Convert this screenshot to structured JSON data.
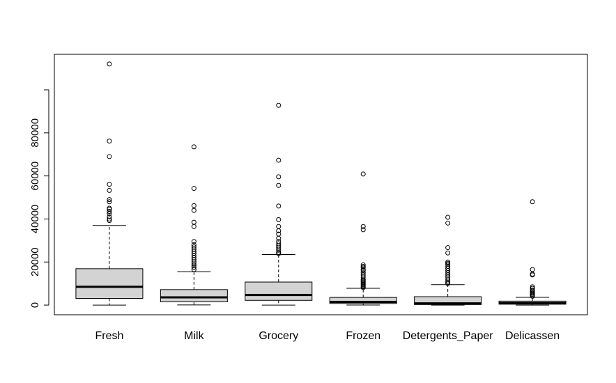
{
  "chart_data": {
    "type": "boxplot",
    "title": "",
    "xlabel": "",
    "ylabel": "",
    "ylim": [
      -4500,
      116500
    ],
    "yticks": [
      0,
      20000,
      40000,
      60000,
      80000,
      100000
    ],
    "ytick_labels": [
      "0",
      "20000",
      "40000",
      "60000",
      "80000",
      ""
    ],
    "box_fill": "#d3d3d3",
    "categories": [
      "Fresh",
      "Milk",
      "Grocery",
      "Frozen",
      "Detergents_Paper",
      "Delicassen"
    ],
    "boxes": [
      {
        "name": "Fresh",
        "min": 3,
        "q1": 3100,
        "median": 8500,
        "q3": 16900,
        "whisker_high": 37000,
        "outliers": [
          112000,
          76200,
          69000,
          56100,
          53300,
          49000,
          48000,
          45000,
          44500,
          43500,
          42500,
          41000,
          40000,
          39300
        ]
      },
      {
        "name": "Milk",
        "min": 55,
        "q1": 1500,
        "median": 3600,
        "q3": 7200,
        "whisker_high": 15500,
        "outliers": [
          73500,
          54200,
          46200,
          44000,
          38500,
          36500,
          29500,
          28000,
          27000,
          26000,
          25000,
          24000,
          23000,
          22000,
          21000,
          20000,
          19000,
          18200,
          17500,
          16500
        ]
      },
      {
        "name": "Grocery",
        "min": 3,
        "q1": 2200,
        "median": 4700,
        "q3": 10700,
        "whisker_high": 23500,
        "outliers": [
          92800,
          67300,
          59600,
          55600,
          46000,
          39700,
          36500,
          34500,
          33000,
          31000,
          29500,
          28500,
          27500,
          26500,
          25500,
          24500,
          23900
        ]
      },
      {
        "name": "Frozen",
        "min": 25,
        "q1": 750,
        "median": 1500,
        "q3": 3550,
        "whisker_high": 7800,
        "outliers": [
          60900,
          36500,
          35000,
          18700,
          18000,
          17500,
          16500,
          16000,
          15000,
          14000,
          13000,
          12000,
          11500,
          11000,
          10500,
          10000,
          9500,
          9000,
          8500,
          8100
        ]
      },
      {
        "name": "Detergents_Paper",
        "min": 3,
        "q1": 250,
        "median": 800,
        "q3": 3900,
        "whisker_high": 9500,
        "outliers": [
          40800,
          38100,
          26700,
          24200,
          20000,
          19400,
          18900,
          18000,
          17000,
          16000,
          15000,
          14000,
          13000,
          12000,
          11200,
          10500,
          10000
        ]
      },
      {
        "name": "Delicassen",
        "min": 3,
        "q1": 400,
        "median": 950,
        "q3": 1850,
        "whisker_high": 3600,
        "outliers": [
          48000,
          16500,
          14400,
          14000,
          8500,
          7800,
          7000,
          6500,
          6000,
          5500,
          5000,
          4500,
          4100
        ]
      }
    ]
  }
}
